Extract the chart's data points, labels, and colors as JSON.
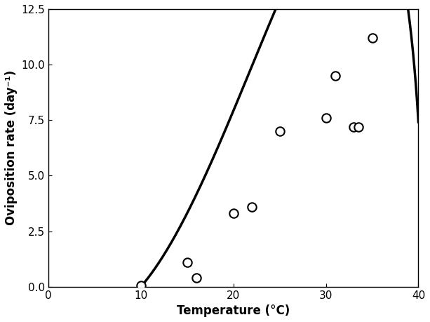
{
  "scatter_x": [
    10.0,
    15.0,
    16.0,
    20.0,
    22.0,
    25.0,
    30.0,
    31.0,
    33.0,
    33.5,
    35.0
  ],
  "scatter_y": [
    0.05,
    1.1,
    0.4,
    3.3,
    3.6,
    7.0,
    7.6,
    9.5,
    7.2,
    7.2,
    11.2
  ],
  "T_L": 10.0,
  "T_M": 40.5,
  "a": 0.00875,
  "m": 2.0,
  "curve_T_start": 10.0,
  "curve_T_end": 40.49,
  "x_lim": [
    0,
    40
  ],
  "y_lim": [
    0,
    12.5
  ],
  "x_ticks": [
    0,
    10,
    20,
    30,
    40
  ],
  "y_ticks": [
    0.0,
    2.5,
    5.0,
    7.5,
    10.0,
    12.5
  ],
  "xlabel": "Temperature (°C)",
  "ylabel": "Oviposition rate (day⁻¹)",
  "scatter_color": "white",
  "scatter_edgecolor": "black",
  "scatter_size": 80,
  "line_color": "black",
  "line_width": 2.5,
  "xlabel_fontsize": 12,
  "ylabel_fontsize": 12,
  "tick_fontsize": 11
}
